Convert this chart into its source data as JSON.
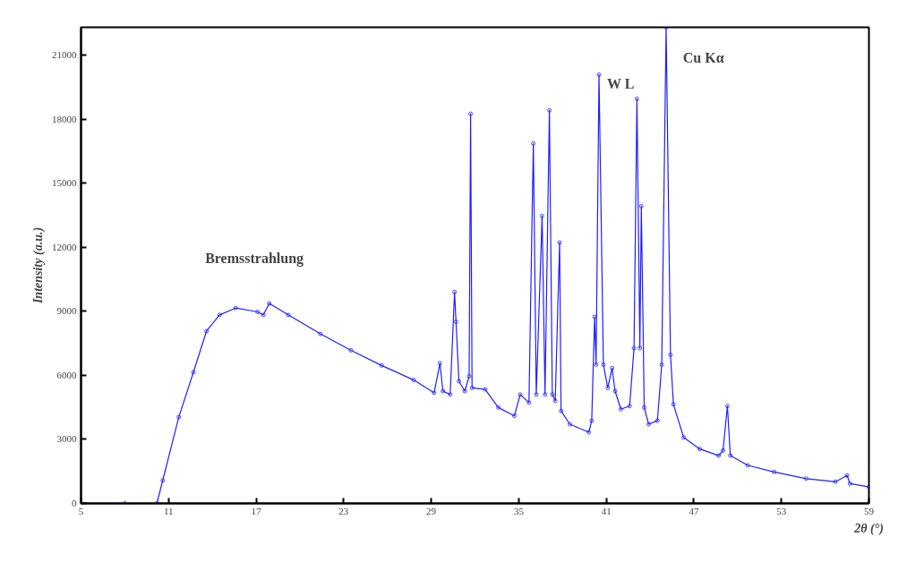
{
  "chart_data": {
    "type": "line",
    "xlabel": "2θ (°)",
    "ylabel": "Intensity (a.u.)",
    "marker": "circle",
    "grid": false,
    "xlim": [
      5,
      59
    ],
    "ylim": [
      0,
      22300
    ],
    "xticks": [
      5,
      11,
      17,
      23,
      29,
      35,
      41,
      47,
      53,
      59
    ],
    "yticks": [
      0,
      3000,
      6000,
      9000,
      12000,
      15000,
      18000,
      21000
    ],
    "annotations": [
      "Bremsstrahlung",
      "W L",
      "Cu Kα"
    ],
    "x": [
      5,
      8,
      10.2,
      10.6,
      11.7,
      12.7,
      13.6,
      14.5,
      15.6,
      17.1,
      17.5,
      17.9,
      19.2,
      21.4,
      23.5,
      25.6,
      27.8,
      29.2,
      29.6,
      29.8,
      30.3,
      30.6,
      30.7,
      30.9,
      31.3,
      31.6,
      31.7,
      31.8,
      32.7,
      33.6,
      34.7,
      35.1,
      35.7,
      36.0,
      36.2,
      36.6,
      36.8,
      37.1,
      37.3,
      37.5,
      37.8,
      37.9,
      38.5,
      39.8,
      40.0,
      40.2,
      40.3,
      40.5,
      40.8,
      41.1,
      41.4,
      41.6,
      42.0,
      42.6,
      42.9,
      43.1,
      43.3,
      43.4,
      43.6,
      43.9,
      44.5,
      44.8,
      45.1,
      45.4,
      45.6,
      46.3,
      47.4,
      48.7,
      49.0,
      49.3,
      49.5,
      50.7,
      52.5,
      54.7,
      56.7,
      57.5,
      57.7,
      59.0
    ],
    "series": [
      {
        "color": "#1f1fff",
        "values": [
          0,
          0,
          0,
          1080,
          4040,
          6140,
          8070,
          8830,
          9150,
          8970,
          8830,
          9370,
          8830,
          7940,
          7170,
          6460,
          5780,
          5180,
          6570,
          5260,
          5100,
          9900,
          8510,
          5720,
          5260,
          5950,
          18250,
          5410,
          5340,
          4490,
          4100,
          5100,
          4720,
          16860,
          5100,
          13460,
          5100,
          18410,
          5100,
          4800,
          12220,
          4330,
          3710,
          3330,
          3870,
          8740,
          6500,
          20080,
          6500,
          5410,
          6340,
          5260,
          4410,
          4560,
          7270,
          18950,
          7270,
          13920,
          4490,
          3710,
          3870,
          6500,
          22300,
          6960,
          4640,
          3090,
          2550,
          2240,
          2480,
          4560,
          2240,
          1780,
          1470,
          1160,
          1010,
          1310,
          930,
          770
        ]
      }
    ]
  }
}
